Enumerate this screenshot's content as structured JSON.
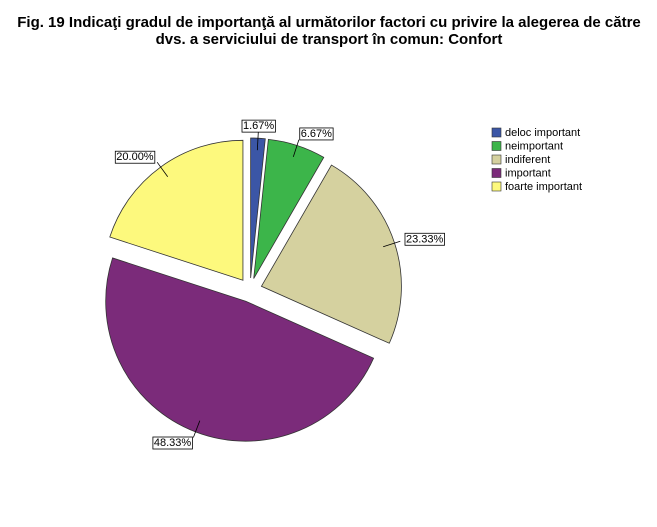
{
  "chart_data": {
    "type": "pie",
    "title": "Fig. 19   Indicaţi gradul de importanţă al următorilor factori cu privire la alegerea de către dvs. a serviciului de transport în comun: Confort",
    "categories": [
      "deloc important",
      "neimportant",
      "indiferent",
      "important",
      "foarte important"
    ],
    "values": [
      1.67,
      6.67,
      23.33,
      48.33,
      20.0
    ],
    "value_labels": [
      "1.67%",
      "6.67%",
      "23.33%",
      "48.33%",
      "20.00%"
    ],
    "colors": [
      "#3b56a6",
      "#3cb54a",
      "#d5d19f",
      "#7b2b7a",
      "#fdf97d"
    ],
    "legend": "top-right"
  }
}
